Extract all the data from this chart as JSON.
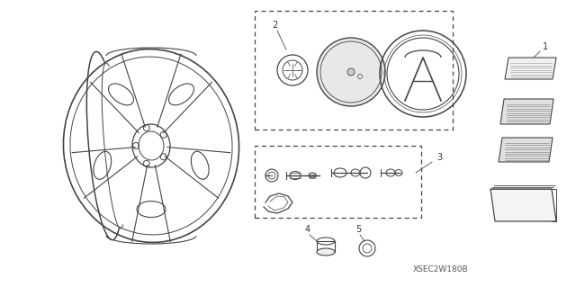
{
  "bg_color": "#ffffff",
  "diagram_id": "XSEC2W180B",
  "fig_width": 6.4,
  "fig_height": 3.19,
  "dpi": 100,
  "line_color": "#444444",
  "line_width": 0.8,
  "label_color": "#333333",
  "label_fontsize": 7,
  "diagram_id_fontsize": 6.5
}
